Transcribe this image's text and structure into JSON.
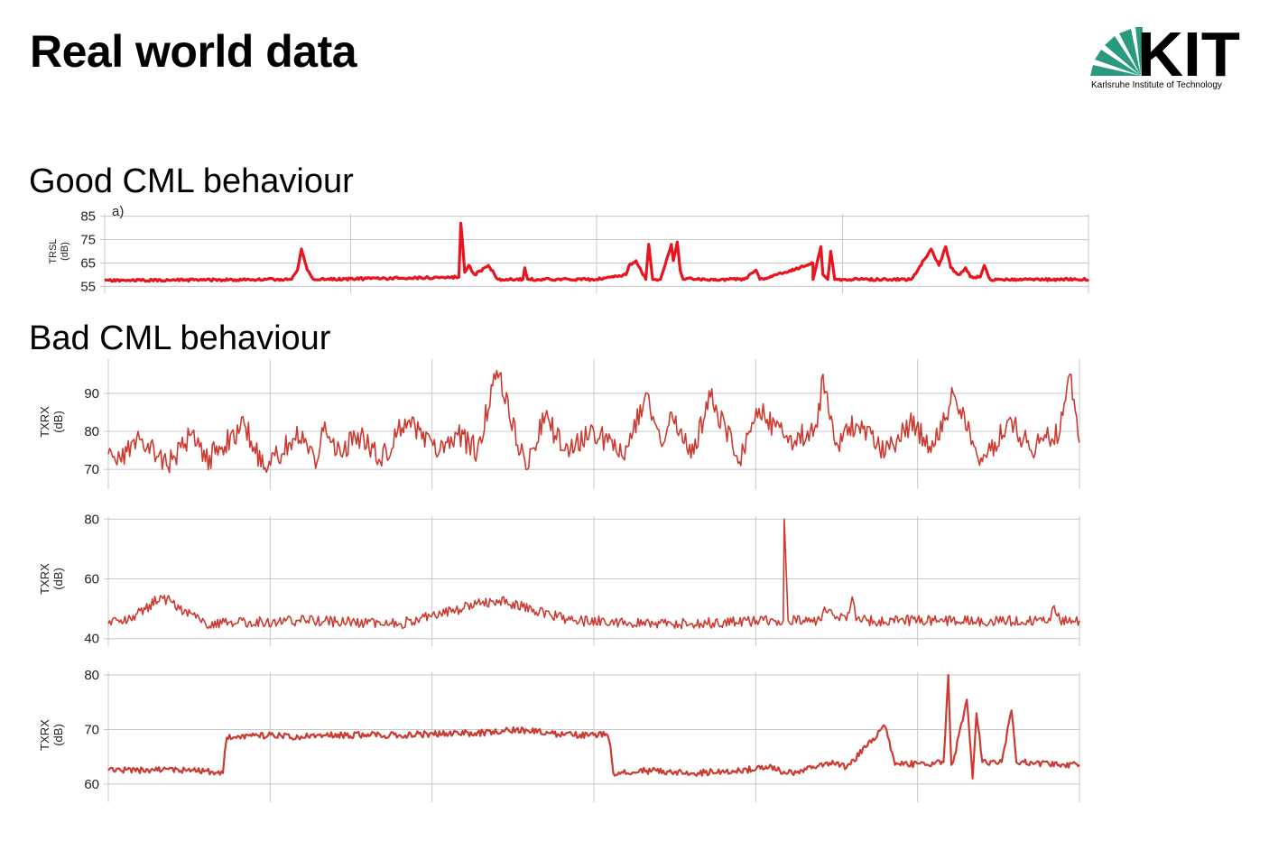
{
  "slide": {
    "title": "Real world data",
    "logo_text": "KIT",
    "logo_caption": "Karlsruhe Institute of Technology",
    "sections": [
      "Good CML behaviour",
      "Bad CML behaviour"
    ]
  },
  "colors": {
    "good_line": "#e8141e",
    "bad_line": "#cc3b31",
    "grid": "#c8c8c8",
    "logo_green": "#2a9a7e"
  },
  "chart_data": [
    {
      "type": "line",
      "panel_label": "a)",
      "ylabel": [
        "TRSL",
        "(dB)"
      ],
      "yticks": [
        55,
        65,
        75,
        85
      ],
      "ylim": [
        54,
        86
      ],
      "grid": true,
      "n_vertical_gridlines": 5,
      "series": [
        {
          "x": [
            0,
            0.19,
            0.196,
            0.2,
            0.206,
            0.212,
            0.3,
            0.36,
            0.362,
            0.366,
            0.37,
            0.376,
            0.39,
            0.4,
            0.425,
            0.427,
            0.43,
            0.5,
            0.53,
            0.533,
            0.54,
            0.55,
            0.553,
            0.557,
            0.565,
            0.576,
            0.578,
            0.582,
            0.585,
            0.588,
            0.592,
            0.598,
            0.65,
            0.662,
            0.666,
            0.67,
            0.72,
            0.72,
            0.728,
            0.73,
            0.735,
            0.738,
            0.742,
            0.75,
            0.82,
            0.84,
            0.848,
            0.855,
            0.86,
            0.868,
            0.875,
            0.88,
            0.89,
            0.894,
            0.9,
            0.91,
            0.918,
            1.0
          ],
          "y": [
            57.5,
            58,
            62,
            71,
            62,
            58,
            58.5,
            59,
            82,
            61,
            64,
            60,
            64,
            58,
            58,
            63,
            58,
            58,
            60,
            64,
            66,
            58,
            73,
            58,
            58,
            73,
            66,
            74,
            62,
            58,
            58.5,
            58,
            58,
            62,
            58,
            58,
            65,
            58,
            72,
            60,
            58,
            70,
            58,
            58,
            58,
            71,
            64,
            72,
            63,
            60,
            63,
            59,
            59,
            64,
            58,
            58,
            58,
            58
          ]
        }
      ]
    },
    {
      "type": "line",
      "ylabel": [
        "TXRX",
        "(dB)"
      ],
      "yticks": [
        70,
        80,
        90
      ],
      "ylim": [
        66,
        99
      ],
      "grid": true,
      "n_vertical_gridlines": 7,
      "series": [
        {
          "x": [
            0,
            0.012,
            0.035,
            0.06,
            0.085,
            0.1,
            0.14,
            0.16,
            0.2,
            0.215,
            0.22,
            0.235,
            0.26,
            0.28,
            0.298,
            0.31,
            0.323,
            0.34,
            0.36,
            0.38,
            0.4,
            0.43,
            0.45,
            0.47,
            0.5,
            0.53,
            0.555,
            0.57,
            0.58,
            0.6,
            0.62,
            0.65,
            0.67,
            0.7,
            0.73,
            0.736,
            0.75,
            0.77,
            0.8,
            0.825,
            0.85,
            0.87,
            0.9,
            0.93,
            0.95,
            0.98,
            0.99,
            1.0
          ],
          "y": [
            74,
            73,
            78,
            71,
            79,
            72,
            82,
            70,
            80,
            72,
            81,
            74,
            79,
            72,
            80,
            83,
            78,
            74,
            79,
            75,
            96,
            70,
            84,
            75,
            80,
            73,
            90,
            76,
            85,
            73,
            89,
            72,
            86,
            77,
            81,
            95,
            77,
            82,
            74,
            82,
            76,
            90,
            72,
            83,
            75,
            80,
            95,
            77
          ]
        }
      ]
    },
    {
      "type": "line",
      "ylabel": [
        "TXRX",
        "(dB)"
      ],
      "yticks": [
        40,
        60,
        80
      ],
      "ylim": [
        39,
        81
      ],
      "grid": true,
      "n_vertical_gridlines": 7,
      "series": [
        {
          "x": [
            0,
            0.02,
            0.055,
            0.1,
            0.195,
            0.205,
            0.3,
            0.4,
            0.48,
            0.6,
            0.69,
            0.695,
            0.696,
            0.7,
            0.734,
            0.736,
            0.76,
            0.766,
            0.77,
            0.85,
            0.97,
            0.974,
            0.98,
            1.0
          ],
          "y": [
            45,
            46,
            54,
            45,
            46,
            46,
            45,
            53,
            46,
            45,
            46,
            46,
            80,
            46,
            46,
            49,
            46,
            54,
            46,
            46,
            46,
            51,
            46,
            46
          ]
        }
      ]
    },
    {
      "type": "line",
      "ylabel": [
        "TXRX",
        "(dB)"
      ],
      "yticks": [
        60,
        70,
        80
      ],
      "ylim": [
        57.5,
        80.5
      ],
      "grid": true,
      "n_vertical_gridlines": 7,
      "series": [
        {
          "x": [
            0,
            0.1,
            0.118,
            0.12,
            0.122,
            0.17,
            0.2,
            0.21,
            0.28,
            0.3,
            0.4,
            0.42,
            0.47,
            0.514,
            0.517,
            0.52,
            0.56,
            0.6,
            0.65,
            0.68,
            0.7,
            0.75,
            0.76,
            0.8,
            0.81,
            0.86,
            0.865,
            0.868,
            0.87,
            0.884,
            0.89,
            0.894,
            0.9,
            0.92,
            0.93,
            0.935,
            0.94,
            1.0
          ],
          "y": [
            62.5,
            62.5,
            62,
            66,
            68.5,
            69,
            68.5,
            69,
            69,
            69,
            69.5,
            70,
            69,
            69,
            67,
            62,
            62.5,
            62,
            62.5,
            63,
            62,
            64,
            63,
            70.5,
            63.5,
            64,
            80,
            63.5,
            64,
            75.5,
            61,
            73,
            64,
            64,
            73.5,
            64,
            64,
            63.5
          ]
        }
      ]
    }
  ]
}
